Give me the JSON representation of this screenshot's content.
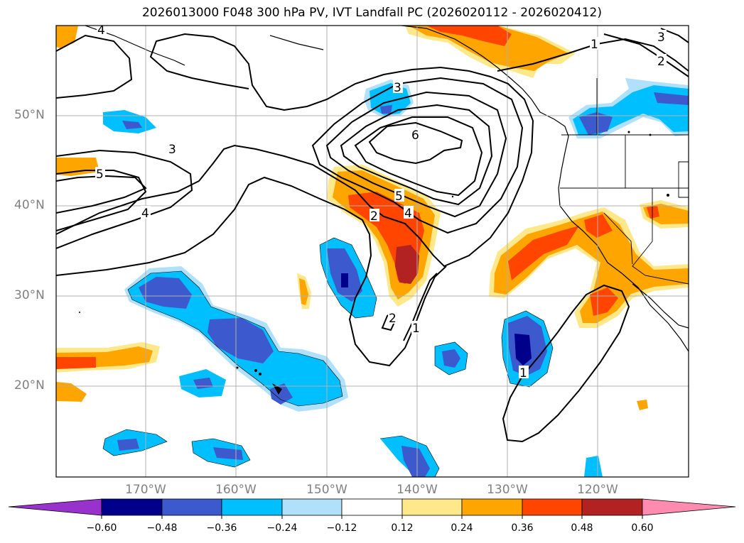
{
  "title": "2026013000 F048 300 hPa PV, IVT Landfall PC (2026020112 - 2026020412)",
  "map": {
    "lat_labels": [
      "50°N",
      "40°N",
      "30°N",
      "20°N"
    ],
    "lon_labels": [
      "170°W",
      "160°W",
      "150°W",
      "140°W",
      "130°W",
      "120°W"
    ]
  },
  "contour_labels": [
    "4",
    "3",
    "5",
    "4",
    "3",
    "6",
    "5",
    "4",
    "2",
    "2",
    "1",
    "1",
    "1",
    "2",
    "3"
  ],
  "colorbar": {
    "ticks": [
      "−0.60",
      "−0.48",
      "−0.36",
      "−0.24",
      "−0.12",
      "0.12",
      "0.24",
      "0.36",
      "0.48",
      "0.60"
    ],
    "colors": {
      "lt060": "#9932cc",
      "m048_060": "#00008b",
      "m036_048": "#3c5acd",
      "m024_036": "#00bfff",
      "m012_024": "#b0e0fa",
      "mid": "#ffffff",
      "p012_024": "#ffe88a",
      "p024_036": "#ffa500",
      "p036_048": "#ff4500",
      "p048_060": "#b22222",
      "gt060": "#ff8cb0"
    }
  }
}
